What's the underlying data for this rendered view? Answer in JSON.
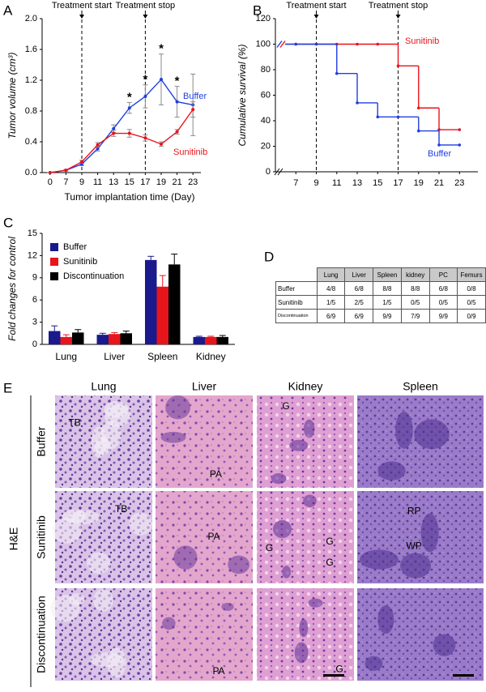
{
  "chart_data": [
    {
      "type": "line",
      "panel": "A",
      "categories": [
        "0",
        "7",
        "9",
        "11",
        "13",
        "15",
        "17",
        "19",
        "21",
        "23"
      ],
      "xlabel": "Tumor implantation time (Day)",
      "ylabel": "Tumor volume (cm³)",
      "ylim": [
        0,
        2
      ],
      "yticks": [
        {
          "value": 0,
          "label": "0.0"
        },
        0.4,
        0.8,
        1.2,
        1.6,
        {
          "value": 2,
          "label": "2.0"
        }
      ],
      "series": [
        {
          "name": "Buffer",
          "color": "#1f3fe0",
          "values": [
            0,
            0.03,
            0.11,
            0.31,
            0.57,
            0.84,
            0.99,
            1.21,
            0.92,
            0.88
          ],
          "errors": [
            0,
            0.01,
            0.02,
            0.03,
            0.05,
            0.07,
            0.15,
            0.33,
            0.2,
            0.4
          ]
        },
        {
          "name": "Sunitinib",
          "color": "#e8141c",
          "values": [
            0,
            0.03,
            0.14,
            0.36,
            0.51,
            0.51,
            0.45,
            0.37,
            0.53,
            0.82
          ],
          "errors": [
            0,
            0.01,
            0.02,
            0.03,
            0.04,
            0.05,
            0.04,
            0.03,
            0.03,
            0.1
          ]
        }
      ],
      "markers": [
        {
          "label": "Treatment start",
          "at": "9"
        },
        {
          "label": "Treatment stop",
          "at": "17"
        }
      ],
      "annotations": [
        {
          "text": "*",
          "at": "15"
        },
        {
          "text": "*",
          "at": "17"
        },
        {
          "text": "*",
          "at": "19"
        },
        {
          "text": "*",
          "at": "21"
        }
      ]
    },
    {
      "type": "step",
      "panel": "B",
      "x": [
        7,
        9,
        11,
        13,
        15,
        17,
        19,
        21,
        23
      ],
      "xlim": [
        5,
        24.8
      ],
      "xticks": [
        7,
        9,
        11,
        13,
        15,
        17,
        19,
        21,
        23
      ],
      "ylabel": "Cumulative survival (%)",
      "ylim": [
        0,
        120
      ],
      "yticks": [
        0,
        20,
        40,
        60,
        80,
        100,
        120
      ],
      "series": [
        {
          "name": "Sunitinib",
          "color": "#e8141c",
          "values": [
            100,
            100,
            100,
            100,
            100,
            83,
            50,
            33,
            33
          ]
        },
        {
          "name": "Buffer",
          "color": "#1f3fe0",
          "values": [
            100,
            100,
            77,
            54,
            43,
            43,
            32,
            21,
            21
          ]
        }
      ],
      "markers": [
        {
          "label": "Treatment start",
          "at": 9
        },
        {
          "label": "Treatment stop",
          "at": 17
        }
      ]
    },
    {
      "type": "bar",
      "panel": "C",
      "categories": [
        "Lung",
        "Liver",
        "Spleen",
        "Kidney"
      ],
      "ylabel": "Fold changes for control",
      "ylim": [
        0,
        15
      ],
      "yticks": [
        0,
        3,
        6,
        9,
        12,
        15
      ],
      "series": [
        {
          "name": "Buffer",
          "color": "#1a1a8c",
          "values": [
            1.8,
            1.3,
            11.4,
            1.0
          ],
          "errors": [
            0.7,
            0.2,
            0.5,
            0.1
          ]
        },
        {
          "name": "Sunitinib",
          "color": "#e8141c",
          "values": [
            1.0,
            1.4,
            7.8,
            1.0
          ],
          "errors": [
            0.3,
            0.2,
            1.5,
            0.1
          ]
        },
        {
          "name": "Discontinuation",
          "color": "#000000",
          "values": [
            1.6,
            1.5,
            10.8,
            1.0
          ],
          "errors": [
            0.4,
            0.3,
            1.4,
            0.2
          ]
        }
      ]
    }
  ],
  "table": {
    "panel": "D",
    "columns": [
      "Lung",
      "Liver",
      "Spleen",
      "kidney",
      "PC",
      "Femurs"
    ],
    "rows": [
      {
        "name": "Buffer",
        "cells": [
          "4/8",
          "6/8",
          "8/8",
          "8/8",
          "6/8",
          "0/8"
        ]
      },
      {
        "name": "Sunitinib",
        "cells": [
          "1/5",
          "2/5",
          "1/5",
          "0/5",
          "0/5",
          "0/5"
        ]
      },
      {
        "name": "Discontinuation",
        "cells": [
          "6/9",
          "6/9",
          "9/9",
          "7/9",
          "9/9",
          "0/9"
        ]
      }
    ]
  },
  "micrographs": {
    "panel": "E",
    "stain": "H&E",
    "columns": [
      "Lung",
      "Liver",
      "Kidney",
      "Spleen"
    ],
    "rows": [
      "Buffer",
      "Sunitinib",
      "Discontinuation"
    ],
    "labels": [
      {
        "text": "TB",
        "row": 0,
        "col": 0
      },
      {
        "text": "PA",
        "row": 0,
        "col": 1
      },
      {
        "text": "G",
        "row": 0,
        "col": 2
      },
      {
        "text": "TB",
        "row": 1,
        "col": 0
      },
      {
        "text": "PA",
        "row": 1,
        "col": 1
      },
      {
        "text": "G",
        "row": 1,
        "col": 2
      },
      {
        "text": "G",
        "row": 1,
        "col": 2
      },
      {
        "text": "G",
        "row": 1,
        "col": 2
      },
      {
        "text": "RP",
        "row": 1,
        "col": 3
      },
      {
        "text": "WP",
        "row": 1,
        "col": 3
      },
      {
        "text": "PA",
        "row": 2,
        "col": 1
      },
      {
        "text": "G",
        "row": 2,
        "col": 2
      }
    ]
  }
}
